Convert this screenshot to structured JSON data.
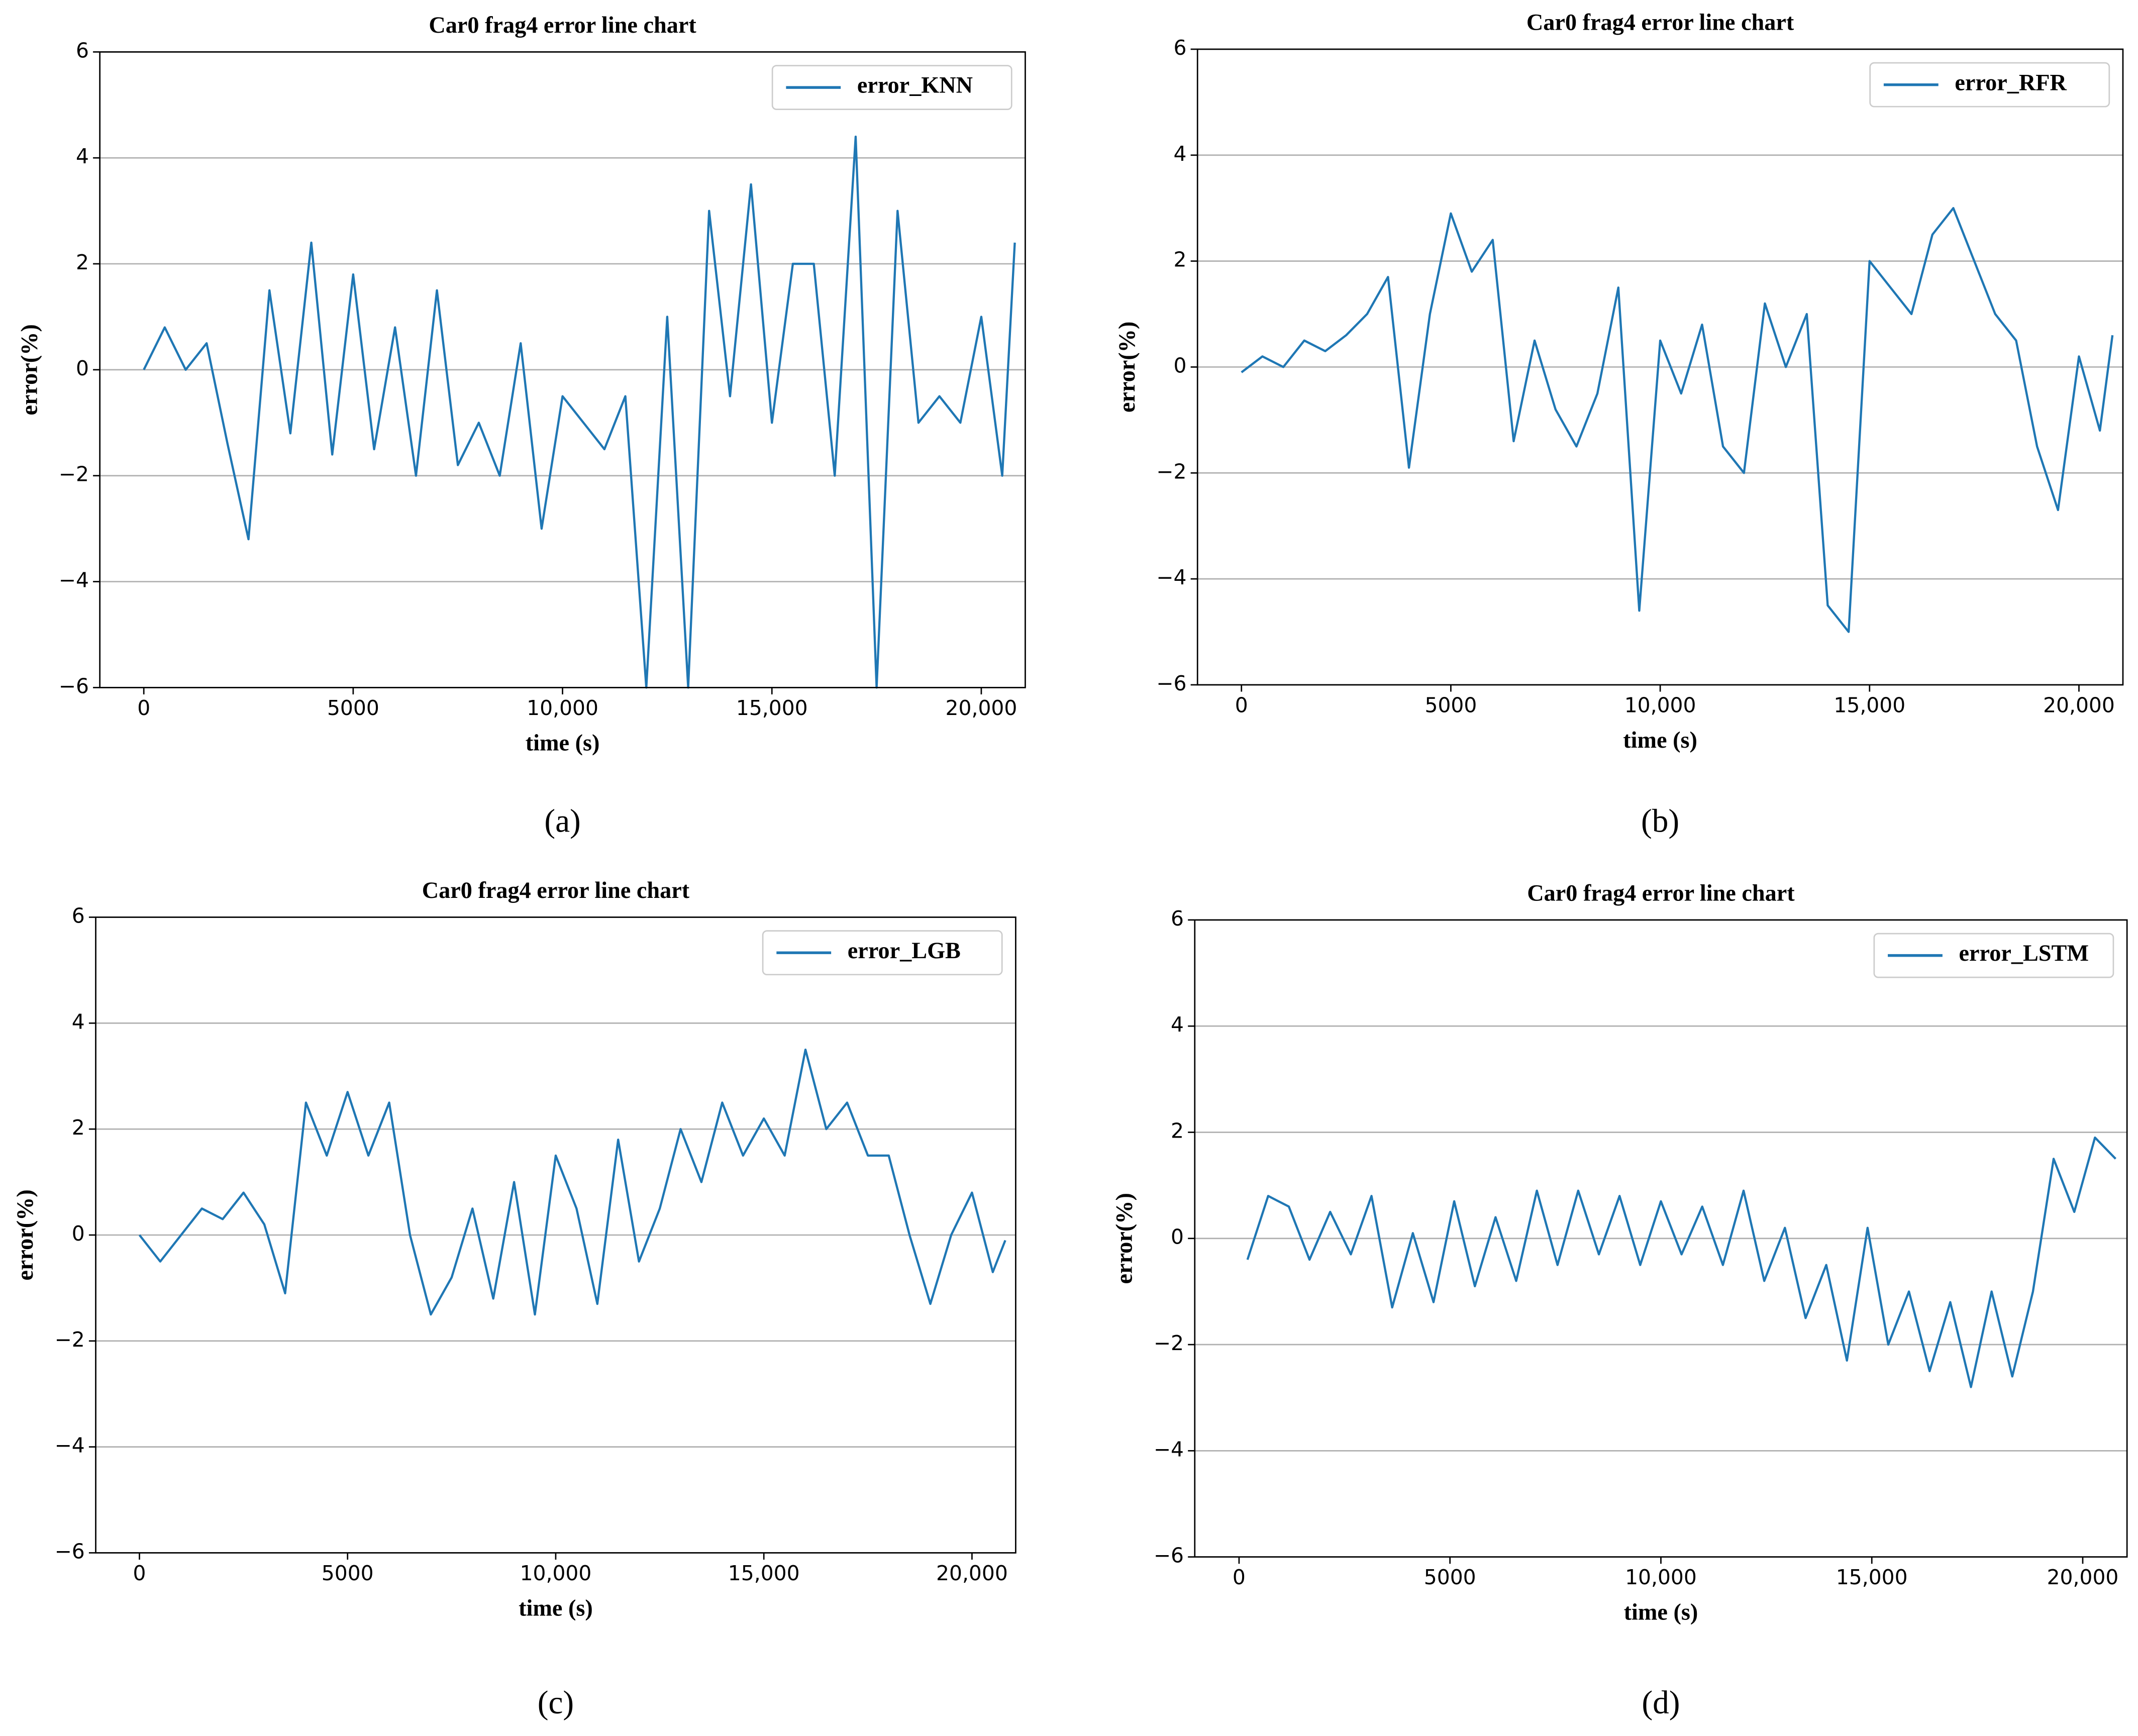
{
  "chart_data": [
    {
      "type": "line",
      "title": "Car0 frag4 error line chart",
      "xlabel": "time (s)",
      "ylabel": "error(%)",
      "caption": "(a)",
      "x": [
        0,
        500,
        1000,
        1500,
        2000,
        2500,
        3000,
        3500,
        4000,
        4500,
        5000,
        5500,
        6000,
        6500,
        7000,
        7500,
        8000,
        8500,
        9000,
        9500,
        10000,
        10500,
        11000,
        11500,
        12000,
        12500,
        13000,
        13500,
        14000,
        14500,
        15000,
        15500,
        16000,
        16500,
        17000,
        17500,
        18000,
        18500,
        19000,
        19500,
        20000,
        20500,
        20800
      ],
      "series": [
        {
          "name": "error_KNN",
          "color": "#1f77b4",
          "values": [
            0,
            0.8,
            0,
            0.5,
            -1.4,
            -3.2,
            1.5,
            -1.2,
            2.4,
            -1.6,
            1.8,
            -1.5,
            0.8,
            -2,
            1.5,
            -1.8,
            -1,
            -2,
            0.5,
            -3,
            -0.5,
            -1,
            -1.5,
            -0.5,
            -6,
            1,
            -6,
            3,
            -0.5,
            3.5,
            -1,
            2,
            2,
            -2,
            4.4,
            -6,
            3,
            -1,
            -0.5,
            -1,
            1,
            -2,
            2.4
          ]
        }
      ],
      "xlim": [
        -1050,
        21050
      ],
      "ylim": [
        -6,
        6
      ],
      "xticks": [
        0,
        5000,
        {
          "value": 10000,
          "label": "10,000"
        },
        {
          "value": 15000,
          "label": "15,000"
        },
        {
          "value": 20000,
          "label": "20,000"
        }
      ],
      "yticks": [
        {
          "value": -6,
          "label": "−6"
        },
        {
          "value": -4,
          "label": "−4"
        },
        {
          "value": -2,
          "label": "−2"
        },
        0,
        2,
        4,
        6
      ],
      "grid": "y",
      "legend": "upper right"
    },
    {
      "type": "line",
      "title": "Car0 frag4 error line chart",
      "xlabel": "time (s)",
      "ylabel": "error(%)",
      "caption": "(b)",
      "x": [
        0,
        500,
        1000,
        1500,
        2000,
        2500,
        3000,
        3500,
        4000,
        4500,
        5000,
        5500,
        6000,
        6500,
        7000,
        7500,
        8000,
        8500,
        9000,
        9500,
        10000,
        10500,
        11000,
        11500,
        12000,
        12500,
        13000,
        13500,
        14000,
        14500,
        15000,
        15500,
        16000,
        16500,
        17000,
        17500,
        18000,
        18500,
        19000,
        19500,
        20000,
        20500,
        20800
      ],
      "series": [
        {
          "name": "error_RFR",
          "color": "#1f77b4",
          "values": [
            -0.1,
            0.2,
            0,
            0.5,
            0.3,
            0.6,
            1,
            1.7,
            -1.9,
            1,
            2.9,
            1.8,
            2.4,
            -1.4,
            0.5,
            -0.8,
            -1.5,
            -0.5,
            1.5,
            -4.6,
            0.5,
            -0.5,
            0.8,
            -1.5,
            -2,
            1.2,
            0,
            1,
            -4.5,
            -5,
            2,
            1.5,
            1,
            2.5,
            3,
            2,
            1,
            0.5,
            -1.5,
            -2.7,
            0.2,
            -1.2,
            0.6
          ]
        }
      ],
      "xlim": [
        -1050,
        21050
      ],
      "ylim": [
        -6,
        6
      ],
      "xticks": [
        0,
        5000,
        {
          "value": 10000,
          "label": "10,000"
        },
        {
          "value": 15000,
          "label": "15,000"
        },
        {
          "value": 20000,
          "label": "20,000"
        }
      ],
      "yticks": [
        {
          "value": -6,
          "label": "−6"
        },
        {
          "value": -4,
          "label": "−4"
        },
        {
          "value": -2,
          "label": "−2"
        },
        0,
        2,
        4,
        6
      ],
      "grid": "y",
      "legend": "upper right"
    },
    {
      "type": "line",
      "title": "Car0 frag4 error line chart",
      "xlabel": "time (s)",
      "ylabel": "error(%)",
      "caption": "(c)",
      "x": [
        0,
        500,
        1000,
        1500,
        2000,
        2500,
        3000,
        3500,
        4000,
        4500,
        5000,
        5500,
        6000,
        6500,
        7000,
        7500,
        8000,
        8500,
        9000,
        9500,
        10000,
        10500,
        11000,
        11500,
        12000,
        12500,
        13000,
        13500,
        14000,
        14500,
        15000,
        15500,
        16000,
        16500,
        17000,
        17500,
        18000,
        18500,
        19000,
        19500,
        20000,
        20500,
        20800
      ],
      "series": [
        {
          "name": "error_LGB",
          "color": "#1f77b4",
          "values": [
            0,
            -0.5,
            0,
            0.5,
            0.3,
            0.8,
            0.2,
            -1.1,
            2.5,
            1.5,
            2.7,
            1.5,
            2.5,
            0,
            -1.5,
            -0.8,
            0.5,
            -1.2,
            1,
            -1.5,
            1.5,
            0.5,
            -1.3,
            1.8,
            -0.5,
            0.5,
            2,
            1,
            2.5,
            1.5,
            2.2,
            1.5,
            3.5,
            2,
            2.5,
            1.5,
            1.5,
            0,
            -1.3,
            0,
            0.8,
            -0.7,
            -0.1
          ]
        }
      ],
      "xlim": [
        -1050,
        21050
      ],
      "ylim": [
        -6,
        6
      ],
      "xticks": [
        0,
        5000,
        {
          "value": 10000,
          "label": "10,000"
        },
        {
          "value": 15000,
          "label": "15,000"
        },
        {
          "value": 20000,
          "label": "20,000"
        }
      ],
      "yticks": [
        {
          "value": -6,
          "label": "−6"
        },
        {
          "value": -4,
          "label": "−4"
        },
        {
          "value": -2,
          "label": "−2"
        },
        0,
        2,
        4,
        6
      ],
      "grid": "y",
      "legend": "upper right"
    },
    {
      "type": "line",
      "title": "Car0 frag4 error line chart",
      "xlabel": "time (s)",
      "ylabel": "error(%)",
      "caption": "(d)",
      "x": [
        200,
        690,
        1180,
        1670,
        2160,
        2650,
        3140,
        3630,
        4120,
        4610,
        5100,
        5590,
        6080,
        6570,
        7060,
        7550,
        8040,
        8530,
        9020,
        9510,
        10000,
        10490,
        10980,
        11470,
        11960,
        12450,
        12940,
        13430,
        13920,
        14410,
        14900,
        15390,
        15880,
        16370,
        16860,
        17350,
        17840,
        18330,
        18820,
        19310,
        19800,
        20290,
        20780
      ],
      "series": [
        {
          "name": "error_LSTM",
          "color": "#1f77b4",
          "values": [
            -0.4,
            0.8,
            0.6,
            -0.4,
            0.5,
            -0.3,
            0.8,
            -1.3,
            0.1,
            -1.2,
            0.7,
            -0.9,
            0.4,
            -0.8,
            0.9,
            -0.5,
            0.9,
            -0.3,
            0.8,
            -0.5,
            0.7,
            -0.3,
            0.6,
            -0.5,
            0.9,
            -0.8,
            0.2,
            -1.5,
            -0.5,
            -2.3,
            0.2,
            -2,
            -1,
            -2.5,
            -1.2,
            -2.8,
            -1,
            -2.6,
            -1,
            1.5,
            0.5,
            1.9,
            1.5
          ]
        }
      ],
      "xlim": [
        -1050,
        21050
      ],
      "ylim": [
        -6,
        6
      ],
      "xticks": [
        0,
        5000,
        {
          "value": 10000,
          "label": "10,000"
        },
        {
          "value": 15000,
          "label": "15,000"
        },
        {
          "value": 20000,
          "label": "20,000"
        }
      ],
      "yticks": [
        {
          "value": -6,
          "label": "−6"
        },
        {
          "value": -4,
          "label": "−4"
        },
        {
          "value": -2,
          "label": "−2"
        },
        0,
        2,
        4,
        6
      ],
      "grid": "y",
      "legend": "upper right"
    }
  ]
}
